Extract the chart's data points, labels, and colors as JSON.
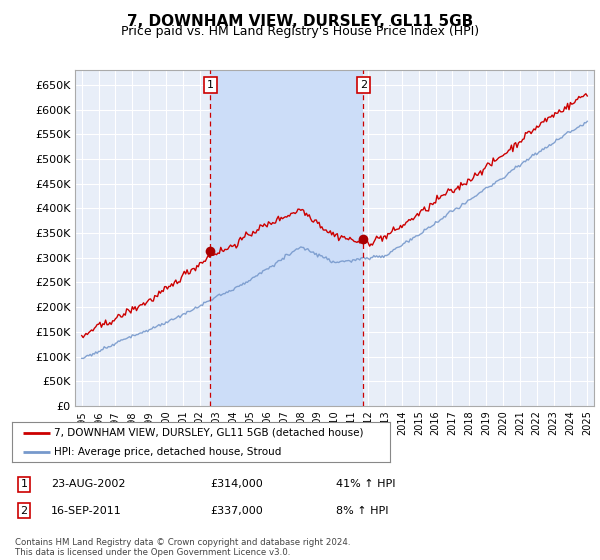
{
  "title": "7, DOWNHAM VIEW, DURSLEY, GL11 5GB",
  "subtitle": "Price paid vs. HM Land Registry's House Price Index (HPI)",
  "ylabel_ticks": [
    "£0",
    "£50K",
    "£100K",
    "£150K",
    "£200K",
    "£250K",
    "£300K",
    "£350K",
    "£400K",
    "£450K",
    "£500K",
    "£550K",
    "£600K",
    "£650K"
  ],
  "ylim": [
    0,
    680000
  ],
  "ytick_values": [
    0,
    50000,
    100000,
    150000,
    200000,
    250000,
    300000,
    350000,
    400000,
    450000,
    500000,
    550000,
    600000,
    650000
  ],
  "xstart_year": 1995,
  "xend_year": 2025,
  "sale1_date": 2002.64,
  "sale1_price": 314000,
  "sale1_label": "1",
  "sale2_date": 2011.71,
  "sale2_price": 337000,
  "sale2_label": "2",
  "legend_line1": "7, DOWNHAM VIEW, DURSLEY, GL11 5GB (detached house)",
  "legend_line2": "HPI: Average price, detached house, Stroud",
  "table_row1": [
    "1",
    "23-AUG-2002",
    "£314,000",
    "41% ↑ HPI"
  ],
  "table_row2": [
    "2",
    "16-SEP-2011",
    "£337,000",
    "8% ↑ HPI"
  ],
  "footnote": "Contains HM Land Registry data © Crown copyright and database right 2024.\nThis data is licensed under the Open Government Licence v3.0.",
  "line_color_red": "#cc0000",
  "line_color_blue": "#7799cc",
  "bg_color": "#e8eef8",
  "bg_color_highlight": "#ccddf8",
  "grid_color": "#ffffff",
  "sale_marker_color": "#aa0000",
  "dashed_line_color": "#cc0000",
  "title_fontsize": 11,
  "subtitle_fontsize": 9
}
